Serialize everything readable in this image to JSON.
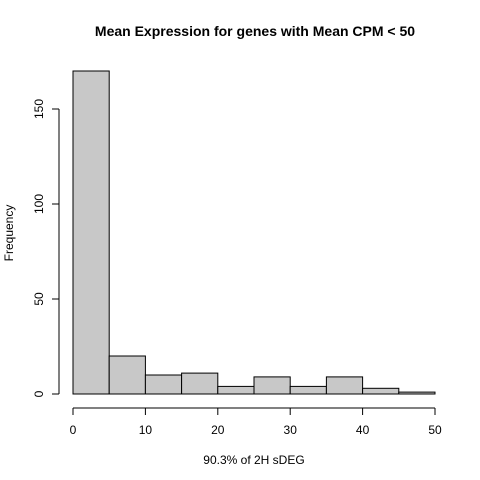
{
  "chart_data": {
    "type": "bar",
    "subtype": "histogram",
    "title": "Mean Expression for genes with Mean CPM < 50",
    "xlabel": "90.3% of 2H sDEG",
    "ylabel": "Frequency",
    "bin_edges": [
      0,
      5,
      10,
      15,
      20,
      25,
      30,
      35,
      40,
      45,
      50
    ],
    "values": [
      170,
      20,
      10,
      11,
      4,
      9,
      4,
      9,
      3,
      1
    ],
    "xlim": [
      0,
      50
    ],
    "ylim": [
      0,
      170
    ],
    "x_ticks": [
      0,
      10,
      20,
      30,
      40,
      50
    ],
    "y_ticks": [
      0,
      50,
      100,
      150
    ],
    "bar_color": "#c8c8c8",
    "grid": false
  }
}
